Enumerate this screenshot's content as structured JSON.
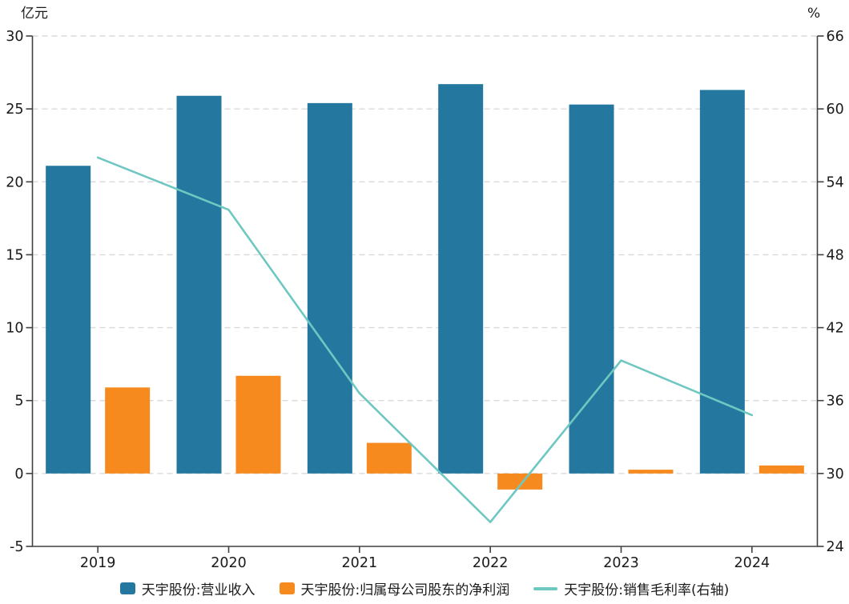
{
  "chart_data": {
    "type": "bar",
    "subtype": "grouped-bars-with-line",
    "categories": [
      "2019",
      "2020",
      "2021",
      "2022",
      "2023",
      "2024"
    ],
    "series": [
      {
        "name": "天宇股份:营业收入",
        "type": "bar",
        "axis": "left",
        "color": "#2478A0",
        "values": [
          21.1,
          25.9,
          25.4,
          26.7,
          25.3,
          26.3
        ]
      },
      {
        "name": "天宇股份:归属母公司股东的净利润",
        "type": "bar",
        "axis": "left",
        "color": "#F78A1E",
        "values": [
          5.9,
          6.7,
          2.1,
          -1.1,
          0.26,
          0.55
        ]
      },
      {
        "name": "天宇股份:销售毛利率(右轴)",
        "type": "line",
        "axis": "right",
        "color": "#6FC7C1",
        "values": [
          56.0,
          51.7,
          36.6,
          26.0,
          39.3,
          34.8
        ]
      }
    ],
    "left_axis": {
      "label": "亿元",
      "min": -5,
      "max": 30,
      "ticks": [
        30,
        25,
        20,
        15,
        10,
        5,
        0,
        -5
      ]
    },
    "right_axis": {
      "label": "%",
      "min": 24,
      "max": 66,
      "ticks": [
        66,
        60,
        54,
        48,
        42,
        36,
        30,
        24
      ]
    },
    "grid": "dashed-horizontal",
    "legend_position": "bottom-center",
    "colors": {
      "axis": "#404040",
      "gridline": "#d9d9d9",
      "tick_text": "#1a1a1a"
    }
  }
}
